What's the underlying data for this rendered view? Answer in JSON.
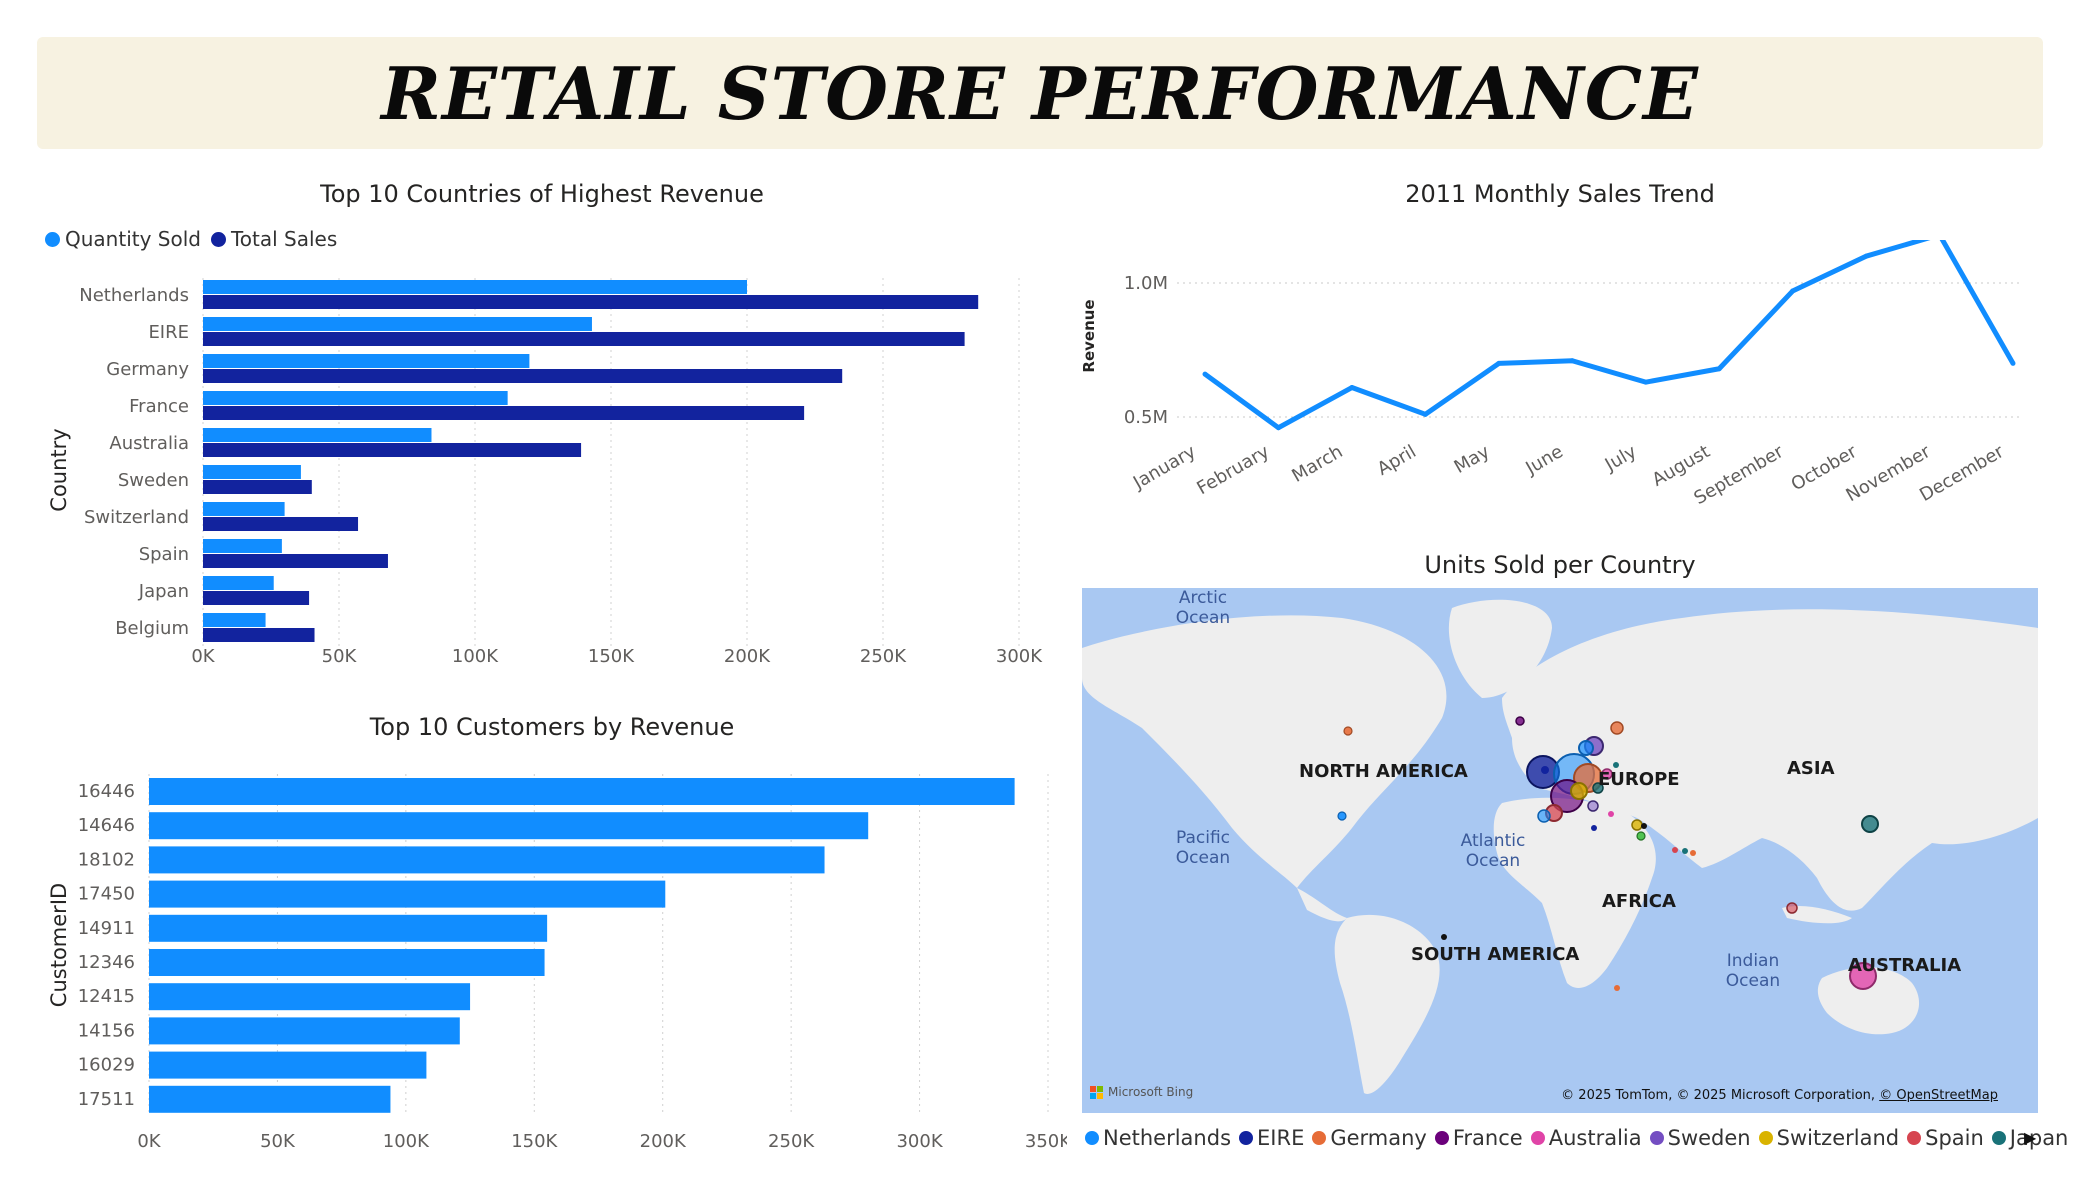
{
  "header": {
    "title": "RETAIL STORE PERFORMANCE"
  },
  "countries_chart": {
    "title": "Top 10 Countries of Highest Revenue",
    "legend": [
      {
        "label": "Quantity Sold",
        "color": "#118dff"
      },
      {
        "label": "Total Sales",
        "color": "#12239e"
      }
    ]
  },
  "monthly_chart": {
    "title": "2011 Monthly Sales Trend"
  },
  "customers_chart": {
    "title": "Top 10 Customers by Revenue"
  },
  "map": {
    "title": "Units Sold per Country",
    "labels": {
      "arctic": "Arctic\nOcean",
      "north_america": "NORTH AMERICA",
      "europe": "EUROPE",
      "asia": "ASIA",
      "pacific": "Pacific\nOcean",
      "atlantic": "Atlantic\nOcean",
      "africa": "AFRICA",
      "south_america": "SOUTH AMERICA",
      "indian": "Indian\nOcean",
      "australia": "AUSTRALIA"
    },
    "attribution": "© 2025 TomTom, © 2025 Microsoft Corporation,",
    "attribution_link": "© OpenStreetMap",
    "brand": "Microsoft Bing",
    "legend": [
      {
        "label": "Netherlands",
        "color": "#118dff"
      },
      {
        "label": "EIRE",
        "color": "#12239e"
      },
      {
        "label": "Germany",
        "color": "#e66c37"
      },
      {
        "label": "France",
        "color": "#6b007b"
      },
      {
        "label": "Australia",
        "color": "#e044a7"
      },
      {
        "label": "Sweden",
        "color": "#744ec2"
      },
      {
        "label": "Switzerland",
        "color": "#d9b300"
      },
      {
        "label": "Spain",
        "color": "#d64550"
      },
      {
        "label": "Japan",
        "color": "#197278"
      }
    ]
  },
  "chart_data": [
    {
      "type": "bar",
      "orientation": "horizontal",
      "title": "Top 10 Countries of Highest Revenue",
      "ylabel": "Country",
      "categories": [
        "Netherlands",
        "EIRE",
        "Germany",
        "France",
        "Australia",
        "Sweden",
        "Switzerland",
        "Spain",
        "Japan",
        "Belgium"
      ],
      "series": [
        {
          "name": "Quantity Sold",
          "color": "#118dff",
          "values": [
            200000,
            143000,
            120000,
            112000,
            84000,
            36000,
            30000,
            29000,
            26000,
            23000
          ]
        },
        {
          "name": "Total Sales",
          "color": "#12239e",
          "values": [
            285000,
            280000,
            235000,
            221000,
            139000,
            40000,
            57000,
            68000,
            39000,
            41000
          ]
        }
      ],
      "xlim": [
        0,
        300000
      ],
      "xticks": [
        0,
        50000,
        100000,
        150000,
        200000,
        250000,
        300000
      ],
      "xtick_labels": [
        "0K",
        "50K",
        "100K",
        "150K",
        "200K",
        "250K",
        "300K"
      ],
      "grid": true,
      "legend_position": "top-left"
    },
    {
      "type": "line",
      "title": "2011 Monthly Sales Trend",
      "ylabel": "Revenue",
      "x": [
        "January",
        "February",
        "March",
        "April",
        "May",
        "June",
        "July",
        "August",
        "September",
        "October",
        "November",
        "December"
      ],
      "values": [
        660000,
        460000,
        610000,
        510000,
        700000,
        710000,
        630000,
        680000,
        970000,
        1100000,
        1180000,
        700000
      ],
      "yticks": [
        500000,
        1000000
      ],
      "ytick_labels": [
        "0.5M",
        "1.0M"
      ],
      "ylim": [
        400000,
        1250000
      ],
      "color": "#118dff",
      "grid": true
    },
    {
      "type": "bar",
      "orientation": "horizontal",
      "title": "Top 10 Customers by Revenue",
      "ylabel": "CustomerID",
      "categories": [
        "16446",
        "14646",
        "18102",
        "17450",
        "14911",
        "12346",
        "12415",
        "14156",
        "16029",
        "17511"
      ],
      "values": [
        337000,
        280000,
        263000,
        201000,
        155000,
        154000,
        125000,
        121000,
        108000,
        94000
      ],
      "xlim": [
        0,
        350000
      ],
      "xticks": [
        0,
        50000,
        100000,
        150000,
        200000,
        250000,
        300000,
        350000
      ],
      "xtick_labels": [
        "0K",
        "50K",
        "100K",
        "150K",
        "200K",
        "250K",
        "300K",
        "350K"
      ],
      "color": "#118dff",
      "grid": true
    }
  ]
}
